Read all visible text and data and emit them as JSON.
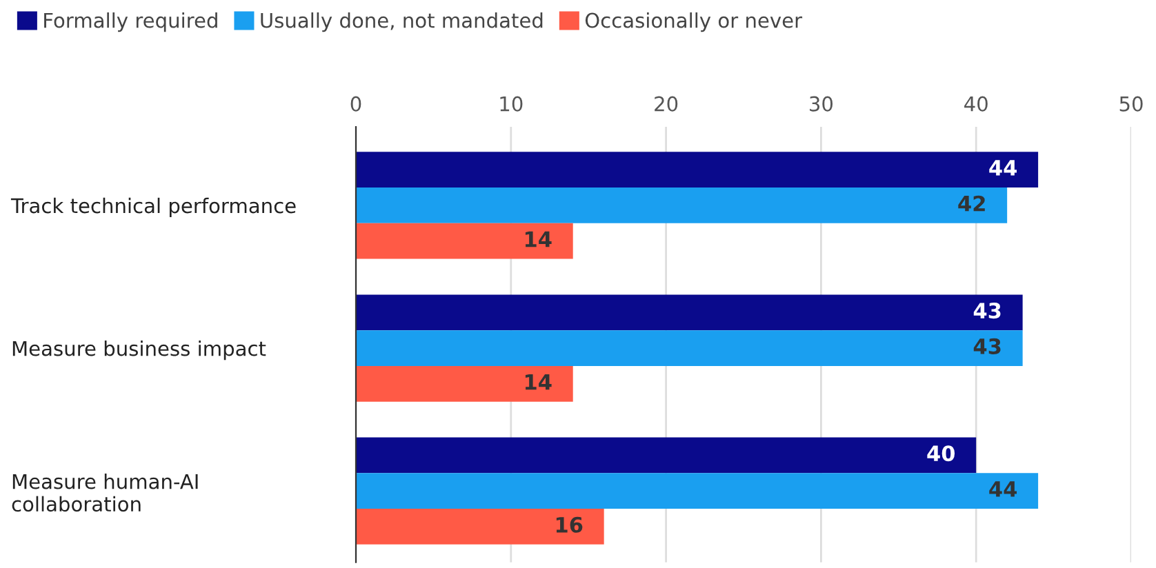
{
  "chart_data": {
    "type": "bar",
    "orientation": "horizontal",
    "categories": [
      "Track technical performance",
      "Measure business impact",
      "Measure human-AI\ncollaboration"
    ],
    "series": [
      {
        "name": "Formally required",
        "color": "#0a0a8c",
        "values": [
          44,
          43,
          40
        ]
      },
      {
        "name": "Usually done, not mandated",
        "color": "#1a9ff0",
        "values": [
          42,
          43,
          44
        ]
      },
      {
        "name": "Occasionally or never",
        "color": "#ff5a46",
        "values": [
          14,
          14,
          16
        ]
      }
    ],
    "xlim": [
      0,
      50
    ],
    "xticks": [
      0,
      10,
      20,
      30,
      40,
      50
    ],
    "grid": "x",
    "legend": "top left",
    "data_labels": true
  }
}
